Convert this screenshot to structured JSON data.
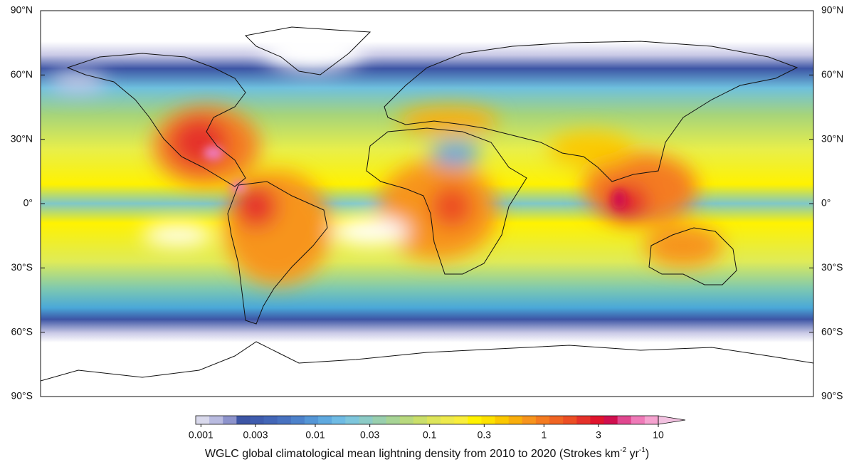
{
  "latitude_labels": [
    "90°N",
    "60°N",
    "30°N",
    "0°",
    "30°S",
    "60°S",
    "90°S"
  ],
  "colorbar": {
    "log_scale": true,
    "lim": [
      0.0009,
      10
    ],
    "ticks": [
      0.001,
      0.003,
      0.01,
      0.03,
      0.1,
      0.3,
      1,
      3,
      10
    ],
    "colors": [
      "#d9d9ec",
      "#b9bbe0",
      "#8d93cc",
      "#3d55a5",
      "#3f5cae",
      "#4366b7",
      "#4872c0",
      "#4d82cb",
      "#5596d6",
      "#5fa9df",
      "#6fbbe4",
      "#7ec6dc",
      "#8ccbc6",
      "#99cfae",
      "#a7d495",
      "#b8d97e",
      "#cadf6a",
      "#dde55a",
      "#eeea4c",
      "#f9ee3c",
      "#fff200",
      "#fde100",
      "#fbc800",
      "#f9ae0c",
      "#f7941d",
      "#f47b20",
      "#f06423",
      "#ec4e24",
      "#e5312a",
      "#e0142d",
      "#d00f4e",
      "#e0478f",
      "#ef7ab8",
      "#f5a2cf"
    ],
    "extension_color": "#f2c1e0",
    "caption": [
      "WGLC global climatological mean lightning density from 2010 to 2020 (Strokes km",
      "-2",
      " yr",
      "-1",
      ")"
    ]
  }
}
